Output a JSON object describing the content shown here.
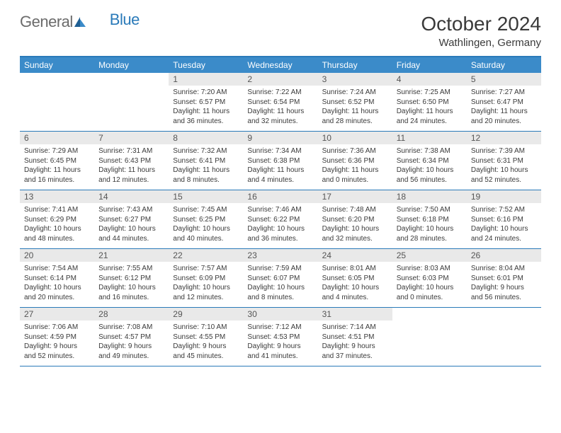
{
  "logo": {
    "part1": "General",
    "part2": "Blue"
  },
  "title": "October 2024",
  "location": "Wathlingen, Germany",
  "colors": {
    "header_bg": "#3b8bc9",
    "border": "#2a7ab9",
    "date_bg": "#e9e9e9",
    "text": "#3a3a3a",
    "logo_gray": "#6b6b6b"
  },
  "typography": {
    "title_fontsize": 28,
    "location_fontsize": 15,
    "day_header_fontsize": 12,
    "cell_fontsize": 10
  },
  "layout": {
    "columns": 7,
    "rows": 5,
    "leading_blanks": 2,
    "trailing_blanks": 2
  },
  "day_names": [
    "Sunday",
    "Monday",
    "Tuesday",
    "Wednesday",
    "Thursday",
    "Friday",
    "Saturday"
  ],
  "days": [
    {
      "n": 1,
      "sunrise": "7:20 AM",
      "sunset": "6:57 PM",
      "daylight": "11 hours and 36 minutes."
    },
    {
      "n": 2,
      "sunrise": "7:22 AM",
      "sunset": "6:54 PM",
      "daylight": "11 hours and 32 minutes."
    },
    {
      "n": 3,
      "sunrise": "7:24 AM",
      "sunset": "6:52 PM",
      "daylight": "11 hours and 28 minutes."
    },
    {
      "n": 4,
      "sunrise": "7:25 AM",
      "sunset": "6:50 PM",
      "daylight": "11 hours and 24 minutes."
    },
    {
      "n": 5,
      "sunrise": "7:27 AM",
      "sunset": "6:47 PM",
      "daylight": "11 hours and 20 minutes."
    },
    {
      "n": 6,
      "sunrise": "7:29 AM",
      "sunset": "6:45 PM",
      "daylight": "11 hours and 16 minutes."
    },
    {
      "n": 7,
      "sunrise": "7:31 AM",
      "sunset": "6:43 PM",
      "daylight": "11 hours and 12 minutes."
    },
    {
      "n": 8,
      "sunrise": "7:32 AM",
      "sunset": "6:41 PM",
      "daylight": "11 hours and 8 minutes."
    },
    {
      "n": 9,
      "sunrise": "7:34 AM",
      "sunset": "6:38 PM",
      "daylight": "11 hours and 4 minutes."
    },
    {
      "n": 10,
      "sunrise": "7:36 AM",
      "sunset": "6:36 PM",
      "daylight": "11 hours and 0 minutes."
    },
    {
      "n": 11,
      "sunrise": "7:38 AM",
      "sunset": "6:34 PM",
      "daylight": "10 hours and 56 minutes."
    },
    {
      "n": 12,
      "sunrise": "7:39 AM",
      "sunset": "6:31 PM",
      "daylight": "10 hours and 52 minutes."
    },
    {
      "n": 13,
      "sunrise": "7:41 AM",
      "sunset": "6:29 PM",
      "daylight": "10 hours and 48 minutes."
    },
    {
      "n": 14,
      "sunrise": "7:43 AM",
      "sunset": "6:27 PM",
      "daylight": "10 hours and 44 minutes."
    },
    {
      "n": 15,
      "sunrise": "7:45 AM",
      "sunset": "6:25 PM",
      "daylight": "10 hours and 40 minutes."
    },
    {
      "n": 16,
      "sunrise": "7:46 AM",
      "sunset": "6:22 PM",
      "daylight": "10 hours and 36 minutes."
    },
    {
      "n": 17,
      "sunrise": "7:48 AM",
      "sunset": "6:20 PM",
      "daylight": "10 hours and 32 minutes."
    },
    {
      "n": 18,
      "sunrise": "7:50 AM",
      "sunset": "6:18 PM",
      "daylight": "10 hours and 28 minutes."
    },
    {
      "n": 19,
      "sunrise": "7:52 AM",
      "sunset": "6:16 PM",
      "daylight": "10 hours and 24 minutes."
    },
    {
      "n": 20,
      "sunrise": "7:54 AM",
      "sunset": "6:14 PM",
      "daylight": "10 hours and 20 minutes."
    },
    {
      "n": 21,
      "sunrise": "7:55 AM",
      "sunset": "6:12 PM",
      "daylight": "10 hours and 16 minutes."
    },
    {
      "n": 22,
      "sunrise": "7:57 AM",
      "sunset": "6:09 PM",
      "daylight": "10 hours and 12 minutes."
    },
    {
      "n": 23,
      "sunrise": "7:59 AM",
      "sunset": "6:07 PM",
      "daylight": "10 hours and 8 minutes."
    },
    {
      "n": 24,
      "sunrise": "8:01 AM",
      "sunset": "6:05 PM",
      "daylight": "10 hours and 4 minutes."
    },
    {
      "n": 25,
      "sunrise": "8:03 AM",
      "sunset": "6:03 PM",
      "daylight": "10 hours and 0 minutes."
    },
    {
      "n": 26,
      "sunrise": "8:04 AM",
      "sunset": "6:01 PM",
      "daylight": "9 hours and 56 minutes."
    },
    {
      "n": 27,
      "sunrise": "7:06 AM",
      "sunset": "4:59 PM",
      "daylight": "9 hours and 52 minutes."
    },
    {
      "n": 28,
      "sunrise": "7:08 AM",
      "sunset": "4:57 PM",
      "daylight": "9 hours and 49 minutes."
    },
    {
      "n": 29,
      "sunrise": "7:10 AM",
      "sunset": "4:55 PM",
      "daylight": "9 hours and 45 minutes."
    },
    {
      "n": 30,
      "sunrise": "7:12 AM",
      "sunset": "4:53 PM",
      "daylight": "9 hours and 41 minutes."
    },
    {
      "n": 31,
      "sunrise": "7:14 AM",
      "sunset": "4:51 PM",
      "daylight": "9 hours and 37 minutes."
    }
  ],
  "labels": {
    "sunrise": "Sunrise: ",
    "sunset": "Sunset: ",
    "daylight": "Daylight: "
  }
}
